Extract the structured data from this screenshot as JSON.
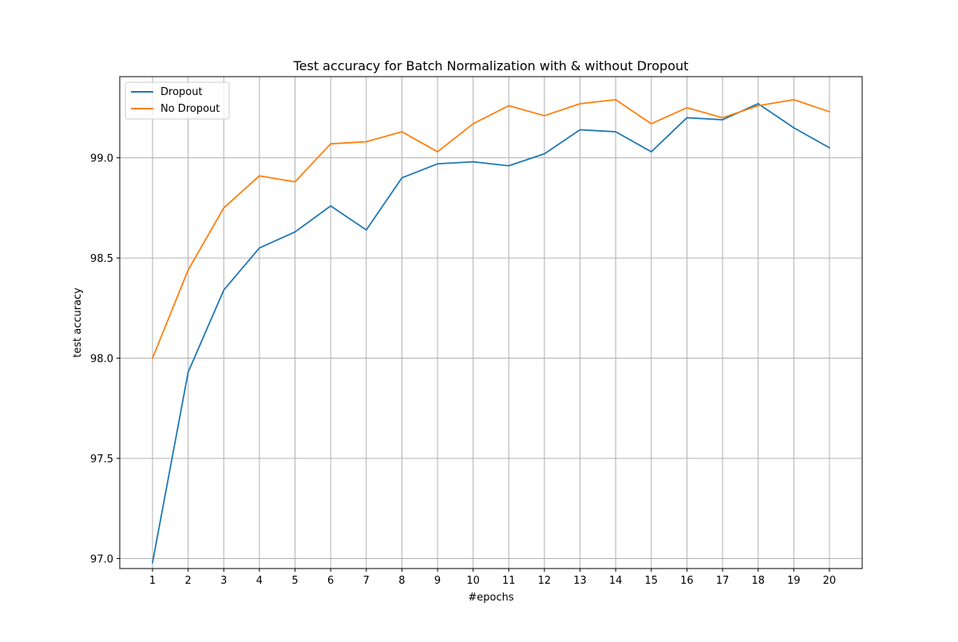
{
  "chart_data": {
    "type": "line",
    "title": "Test accuracy for Batch Normalization with & without Dropout",
    "xlabel": "#epochs",
    "ylabel": "test accuracy",
    "x": [
      1,
      2,
      3,
      4,
      5,
      6,
      7,
      8,
      9,
      10,
      11,
      12,
      13,
      14,
      15,
      16,
      17,
      18,
      19,
      20
    ],
    "xlim": [
      0.08,
      20.92
    ],
    "ylim": [
      96.95,
      99.405
    ],
    "yticks": [
      97.0,
      97.5,
      98.0,
      98.5,
      99.0
    ],
    "ytick_labels": [
      "97.0",
      "97.5",
      "98.0",
      "98.5",
      "99.0"
    ],
    "grid": true,
    "legend_position": "upper-left",
    "series": [
      {
        "name": "Dropout",
        "color": "#1f77b4",
        "values": [
          96.98,
          97.93,
          98.34,
          98.55,
          98.63,
          98.76,
          98.64,
          98.9,
          98.97,
          98.98,
          98.96,
          99.02,
          99.14,
          99.13,
          99.03,
          99.2,
          99.19,
          99.27,
          99.15,
          99.05
        ]
      },
      {
        "name": "No Dropout",
        "color": "#ff7f0e",
        "values": [
          98.0,
          98.44,
          98.75,
          98.91,
          98.88,
          99.07,
          99.08,
          99.13,
          99.03,
          99.17,
          99.26,
          99.21,
          99.27,
          99.29,
          99.17,
          99.25,
          99.2,
          99.26,
          99.29,
          99.23
        ]
      }
    ]
  }
}
